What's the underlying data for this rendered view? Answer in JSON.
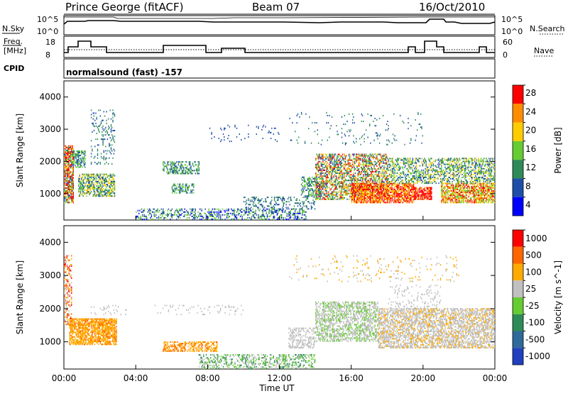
{
  "header": {
    "title": "Prince George (fitACF)",
    "beam": "Beam 07",
    "date": "16/Oct/2010"
  },
  "strip_labels": {
    "nsky": "N.Sky",
    "nsky_ticks": [
      "10^5",
      "10^0"
    ],
    "nsearch": "N.Search",
    "nsearch_ticks": [
      "10^5",
      "10^0"
    ],
    "freq_line1": "Freq.",
    "freq_line2": "[MHz]",
    "freq_ticks": [
      "18",
      "8"
    ],
    "nave": "Nave",
    "nave_ticks": [
      "60",
      "0"
    ],
    "cpid": "CPID",
    "cpid_text": "normalsound (fast) -157"
  },
  "xlabel": "Time UT",
  "chart_data": [
    {
      "type": "heatmap",
      "title": "Power",
      "ylabel": "Slant Range [km]",
      "colorbar_label": "Power [dB]",
      "xlim": [
        "00:00",
        "24:00"
      ],
      "ylim": [
        180,
        4500
      ],
      "x_ticks": [
        "00:00",
        "04:00",
        "08:00",
        "12:00",
        "16:00",
        "20:00",
        "00:00"
      ],
      "y_ticks": [
        1000,
        2000,
        3000,
        4000
      ],
      "colorbar_ticks": [
        "4",
        "8",
        "12",
        "16",
        "20",
        "24",
        "28"
      ],
      "colors": [
        "#0000ff",
        "#1e4ea8",
        "#2e8b57",
        "#66cc33",
        "#ffcc00",
        "#ff8c00",
        "#ff0000"
      ]
    },
    {
      "type": "heatmap",
      "title": "Velocity",
      "ylabel": "Slant Range [km]",
      "colorbar_label": "Velocity [m s^-1]",
      "xlim": [
        "00:00",
        "24:00"
      ],
      "ylim": [
        180,
        4500
      ],
      "x_ticks": [
        "00:00",
        "04:00",
        "08:00",
        "12:00",
        "16:00",
        "20:00",
        "00:00"
      ],
      "y_ticks": [
        1000,
        2000,
        3000,
        4000
      ],
      "colorbar_ticks": [
        "1000",
        "500",
        "100",
        "25",
        "-25",
        "-100",
        "-500",
        "-1000"
      ],
      "colors": [
        "#2040c0",
        "#2e6a9a",
        "#2e8b57",
        "#66cc33",
        "#c0c0c0",
        "#ffaa00",
        "#ff6600",
        "#ff0000"
      ]
    }
  ]
}
